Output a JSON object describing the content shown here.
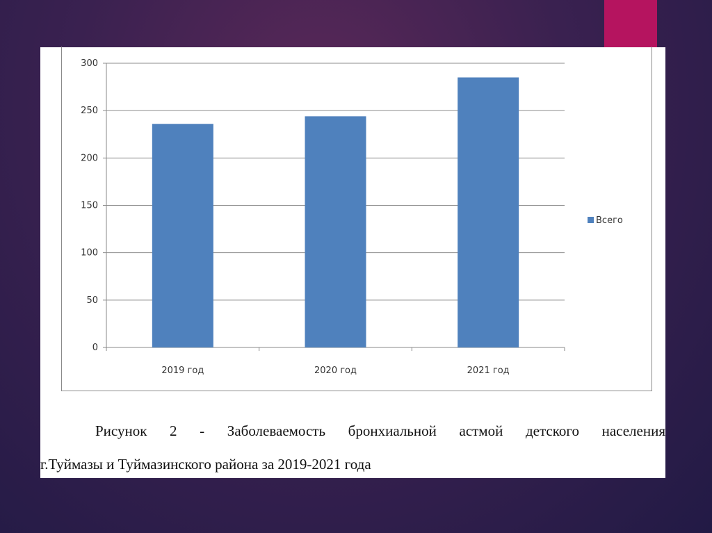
{
  "chart_data": {
    "type": "bar",
    "categories": [
      "2019 год",
      "2020 год",
      "2021 год"
    ],
    "series": [
      {
        "name": "Всего",
        "values": [
          236,
          244,
          285
        ],
        "color": "#4f81bd"
      }
    ],
    "ylim": [
      0,
      300
    ],
    "yticks": [
      0,
      50,
      100,
      150,
      200,
      250,
      300
    ],
    "grid": true,
    "legend": "right"
  },
  "caption": {
    "line1": "Рисунок 2 - Заболеваемость бронхиальной астмой детского населения",
    "line2": "г.Туймазы и Туймазинского района за 2019-2021 года"
  },
  "colors": {
    "accent": "#b5145f",
    "bar": "#4f81bd"
  }
}
